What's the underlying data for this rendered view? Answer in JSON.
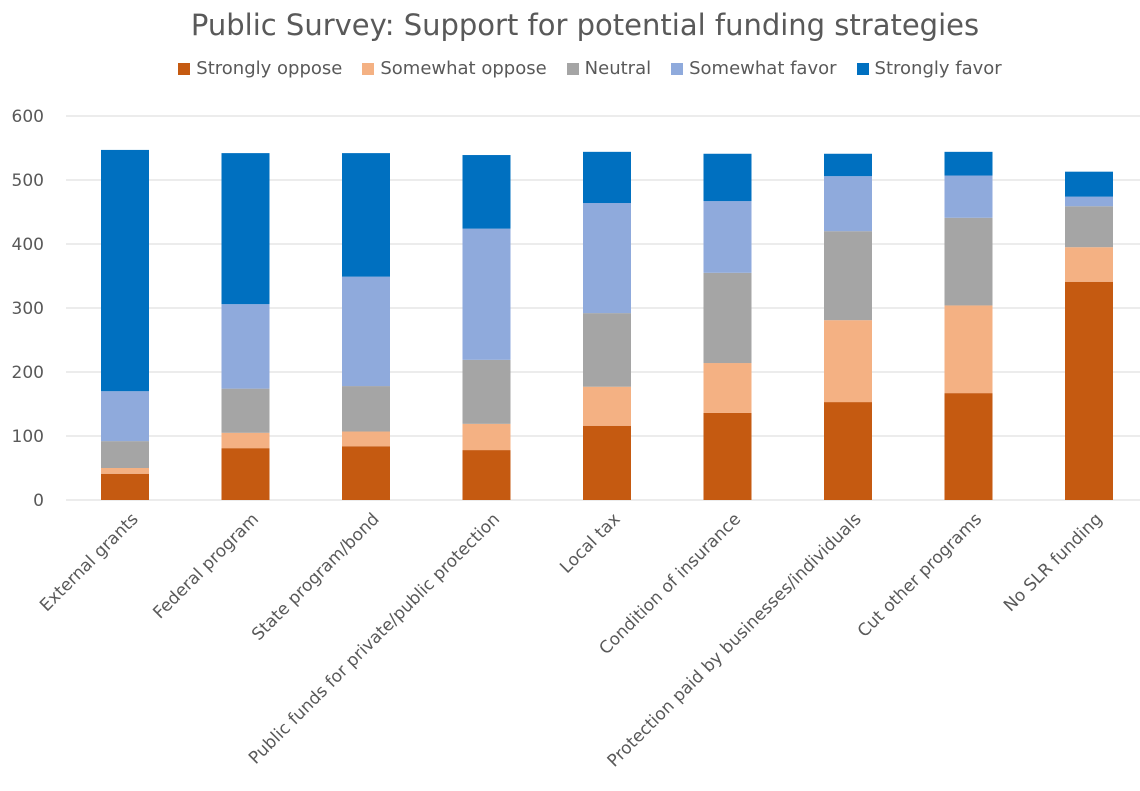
{
  "chart_data": {
    "type": "bar",
    "stacked": true,
    "title": "Public Survey: Support for potential funding strategies",
    "xlabel": "",
    "ylabel": "",
    "ylim": [
      0,
      600
    ],
    "yticks": [
      0,
      100,
      200,
      300,
      400,
      500,
      600
    ],
    "grid": true,
    "legend_position": "top",
    "categories": [
      "External grants",
      "Federal program",
      "State program/bond",
      "Public funds for private/public protection",
      "Local tax",
      "Condition of insurance",
      "Protection paid by businesses/individuals",
      "Cut other programs",
      "No SLR funding"
    ],
    "series": [
      {
        "name": "Strongly oppose",
        "color": "#C55A11",
        "values": [
          41,
          81,
          84,
          78,
          116,
          136,
          153,
          167,
          341
        ]
      },
      {
        "name": "Somewhat oppose",
        "color": "#F4B183",
        "values": [
          9,
          24,
          23,
          41,
          61,
          78,
          128,
          137,
          54
        ]
      },
      {
        "name": "Neutral",
        "color": "#A5A5A5",
        "values": [
          42,
          69,
          71,
          100,
          115,
          141,
          139,
          137,
          64
        ]
      },
      {
        "name": "Somewhat favor",
        "color": "#8FAADC",
        "values": [
          78,
          132,
          171,
          205,
          172,
          112,
          86,
          66,
          15
        ]
      },
      {
        "name": "Strongly favor",
        "color": "#0070C0",
        "values": [
          377,
          236,
          193,
          115,
          80,
          74,
          35,
          37,
          39
        ]
      }
    ]
  }
}
